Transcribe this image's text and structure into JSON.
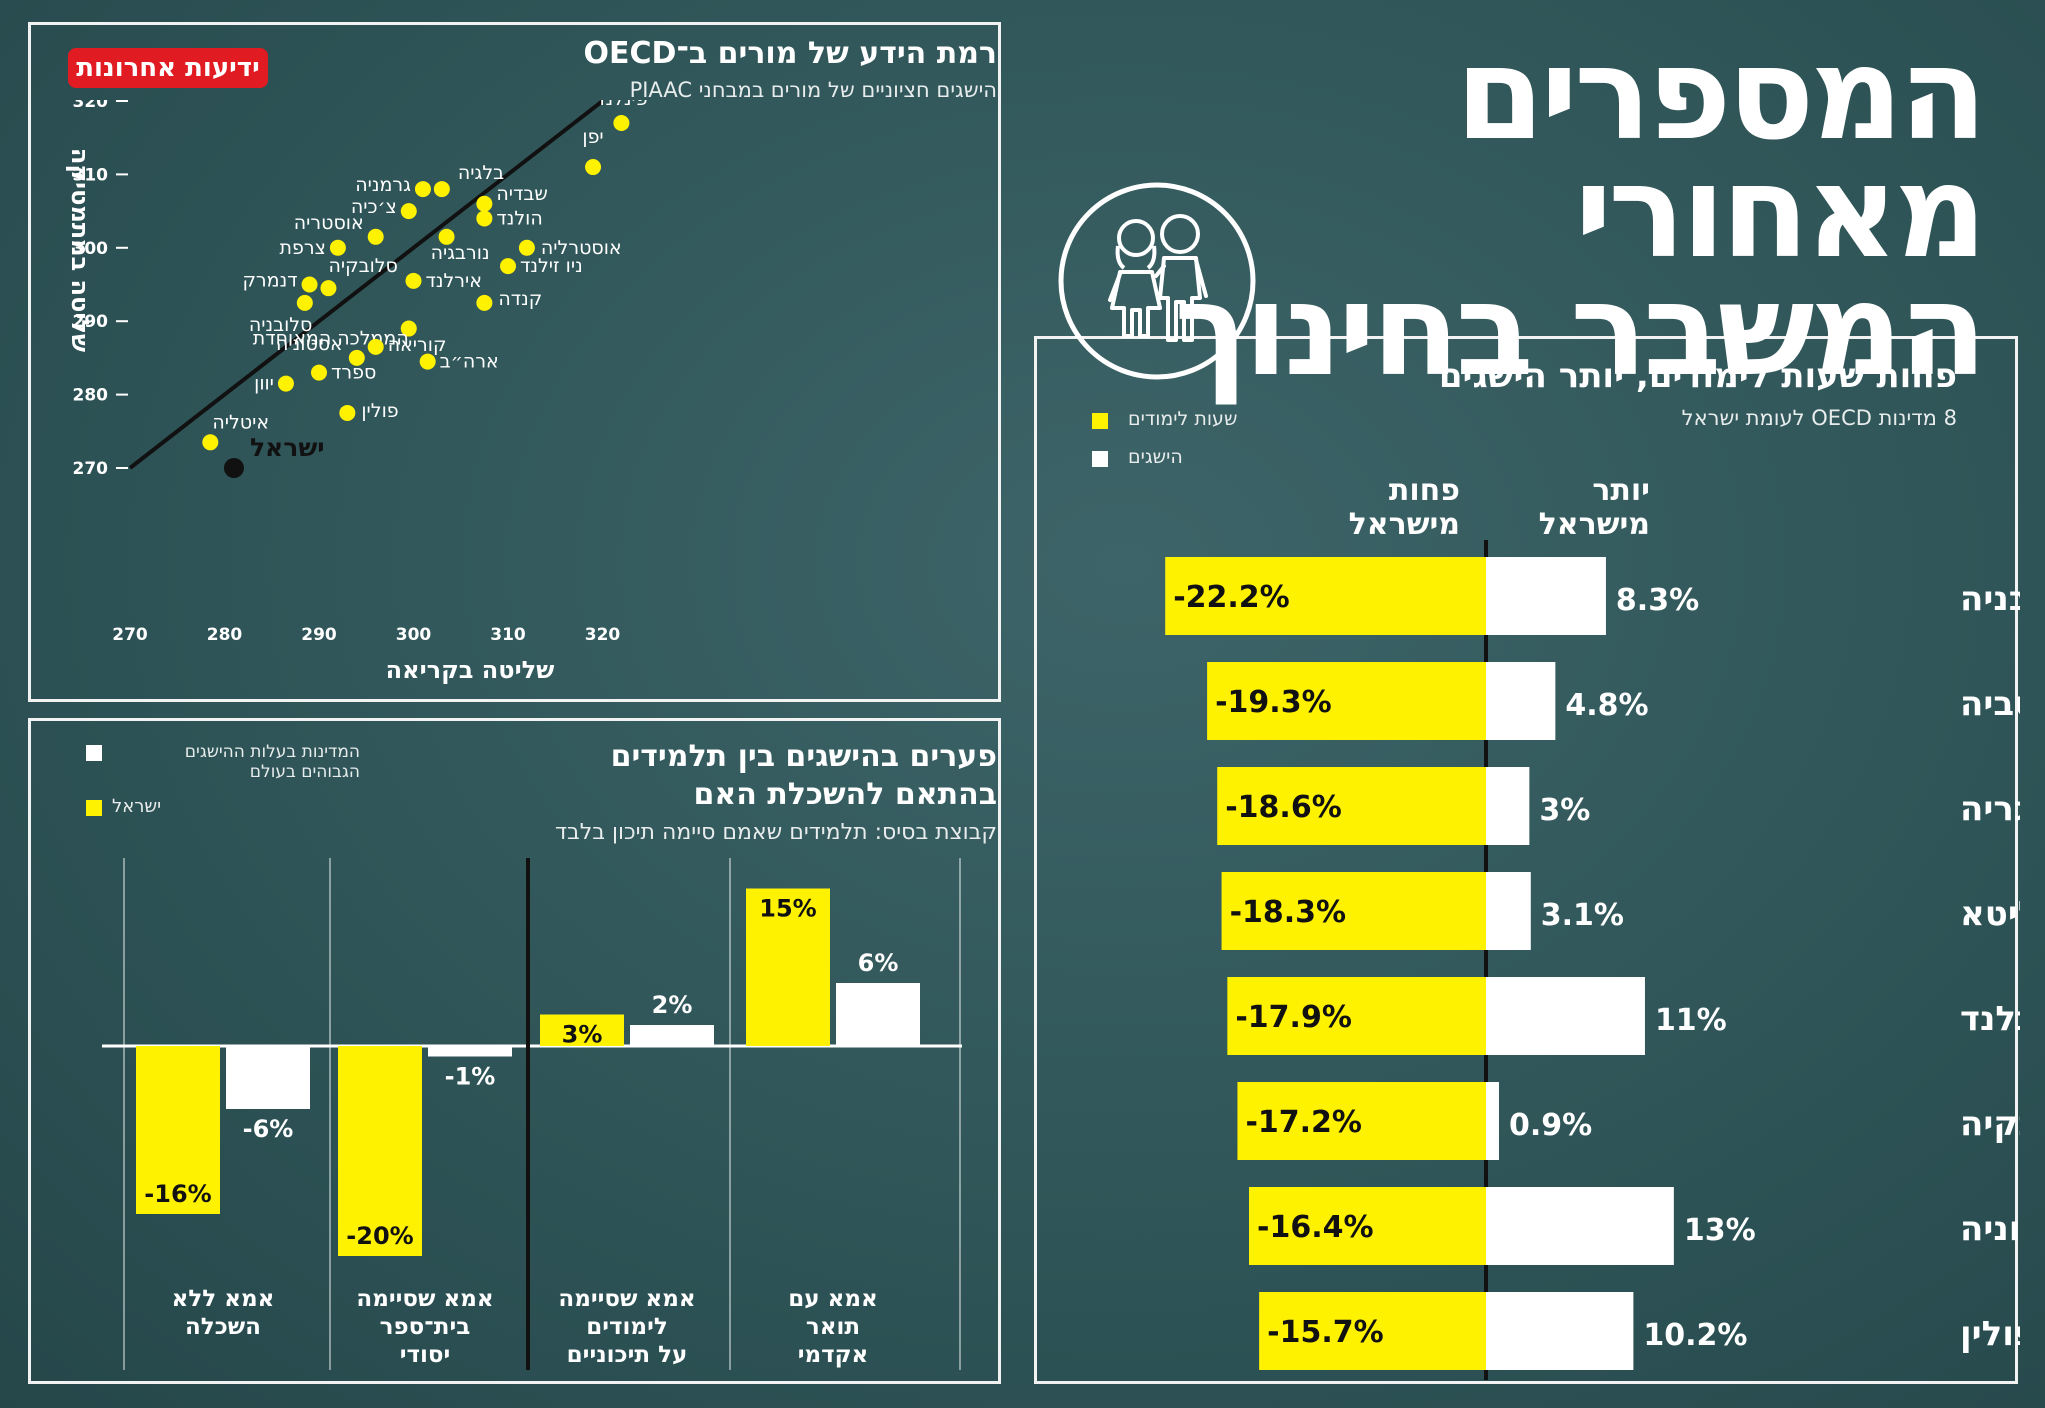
{
  "main_title": {
    "line1": "המספרים מאחורי",
    "line2": "המשבר בחינוך"
  },
  "brand": "ידיעות אחרונות",
  "colors": {
    "yellow": "#fff200",
    "white": "#ffffff",
    "board": "#2f5558"
  },
  "icons": [
    "children-icon"
  ],
  "scatter": {
    "title": "רמת הידע של מורים ב־OECD",
    "subtitle": "הישגים חציוניים של מורים במבחני PIAAC",
    "xlabel": "שליטה בקריאה",
    "ylabel": "שליטה במתמטיקה",
    "highlight_label": "ישראל"
  },
  "gap": {
    "title_line1": "פערים בהישגים בין תלמידים",
    "title_line2": "בהתאם להשכלת האם",
    "subtitle": "קבוצת בסיס: תלמידים שאמם סיימה תיכון בלבד",
    "legend_top_line1": "המדינות בעלות ההישגים",
    "legend_top_line2": "הגבוהים בעולם",
    "legend_israel": "ישראל"
  },
  "hours": {
    "title": "פחות שעות לימודים, יותר הישגים",
    "subtitle": "8 מדינות OECD לעומת ישראל",
    "legend_hours": "שעות לימודים",
    "legend_achievements": "הישגים",
    "col_more_line1": "יותר",
    "col_more_line2": "מישראל",
    "col_less_line1": "פחות",
    "col_less_line2": "מישראל"
  },
  "chart_data": [
    {
      "type": "scatter",
      "title": "רמת הידע של מורים ב־OECD",
      "subtitle": "הישגים חציוניים של מורים במבחני PIAAC",
      "xlabel": "שליטה בקריאה",
      "ylabel": "שליטה במתמטיקה",
      "xlim": [
        270,
        325
      ],
      "ylim": [
        270,
        320
      ],
      "xticks": [
        270,
        280,
        290,
        300,
        310,
        320
      ],
      "yticks": [
        270,
        280,
        290,
        300,
        310,
        320
      ],
      "trendline": [
        [
          270,
          270
        ],
        [
          320,
          320
        ]
      ],
      "points": [
        {
          "name": "פינלנד",
          "x": 322,
          "y": 317
        },
        {
          "name": "יפן",
          "x": 319,
          "y": 311
        },
        {
          "name": "בלגיה",
          "x": 303,
          "y": 308
        },
        {
          "name": "גרמניה",
          "x": 301,
          "y": 308
        },
        {
          "name": "שבדיה",
          "x": 307.5,
          "y": 306
        },
        {
          "name": "צ׳כיה",
          "x": 299.5,
          "y": 305
        },
        {
          "name": "הולנד",
          "x": 307.5,
          "y": 304
        },
        {
          "name": "אוסטריה",
          "x": 296,
          "y": 301.5
        },
        {
          "name": "נורבגיה",
          "x": 303.5,
          "y": 301.5
        },
        {
          "name": "צרפת",
          "x": 292,
          "y": 300
        },
        {
          "name": "אוסטרליה",
          "x": 312,
          "y": 300
        },
        {
          "name": "ניו זילנד",
          "x": 310,
          "y": 297.5
        },
        {
          "name": "אירלנד",
          "x": 300,
          "y": 295.5
        },
        {
          "name": "דנמרק",
          "x": 289,
          "y": 295
        },
        {
          "name": "סלובקיה",
          "x": 291,
          "y": 294.5
        },
        {
          "name": "סלובניה",
          "x": 288.5,
          "y": 292.5
        },
        {
          "name": "קנדה",
          "x": 307.5,
          "y": 292.5
        },
        {
          "name": "הממלכה המאוחדת",
          "x": 299.5,
          "y": 289
        },
        {
          "name": "קוריאה",
          "x": 296,
          "y": 286.5
        },
        {
          "name": "אסטוניה",
          "x": 294,
          "y": 285
        },
        {
          "name": "ארה״ב",
          "x": 301.5,
          "y": 284.5
        },
        {
          "name": "ספרד",
          "x": 290,
          "y": 283
        },
        {
          "name": "יוון",
          "x": 286.5,
          "y": 281.5
        },
        {
          "name": "פולין",
          "x": 293,
          "y": 277.5
        },
        {
          "name": "איטליה",
          "x": 278.5,
          "y": 273.5
        },
        {
          "name": "ישראל",
          "x": 281,
          "y": 270,
          "highlight": true
        }
      ]
    },
    {
      "type": "bar",
      "title": "פערים בהישגים בין תלמידים בהתאם להשכלת האם",
      "subtitle": "קבוצת בסיס: תלמידים שאמם סיימה תיכון בלבד",
      "categories": [
        "אמא ללא השכלה",
        "אמא שסיימה בית־ספר יסודי",
        "אמא שסיימה לימודים על תיכוניים",
        "אמא עם תואר אקדמי"
      ],
      "category_lines": [
        [
          "אמא ללא",
          "השכלה"
        ],
        [
          "אמא שסיימה",
          "בית־ספר",
          "יסודי"
        ],
        [
          "אמא שסיימה",
          "לימודים",
          "על תיכוניים"
        ],
        [
          "אמא עם",
          "תואר",
          "אקדמי"
        ]
      ],
      "series": [
        {
          "name": "ישראל",
          "color": "#fff200",
          "values": [
            -16,
            -20,
            3,
            15
          ],
          "labels": [
            "-16%",
            "-20%",
            "3%",
            "15%"
          ]
        },
        {
          "name": "המדינות בעלות ההישגים הגבוהים בעולם",
          "color": "#ffffff",
          "values": [
            -6,
            -1,
            2,
            6
          ],
          "labels": [
            "-6%",
            "-1%",
            "2%",
            "6%"
          ]
        }
      ]
    },
    {
      "type": "bar",
      "orientation": "horizontal-diverging",
      "title": "פחות שעות לימודים, יותר הישגים",
      "subtitle": "8 מדינות OECD לעומת ישראל",
      "categories": [
        "סלובניה",
        "לטביה",
        "הונגריה",
        "ליטא",
        "פינלנד",
        "סלובקיה",
        "אסטוניה",
        "פולין"
      ],
      "series": [
        {
          "name": "שעות לימודים",
          "color": "#fff200",
          "values": [
            -22.2,
            -19.3,
            -18.6,
            -18.3,
            -17.9,
            -17.2,
            -16.4,
            -15.7
          ],
          "labels": [
            "-22.2%",
            "-19.3%",
            "-18.6%",
            "-18.3%",
            "-17.9%",
            "-17.2%",
            "-16.4%",
            "-15.7%"
          ]
        },
        {
          "name": "הישגים",
          "color": "#ffffff",
          "values": [
            8.3,
            4.8,
            3,
            3.1,
            11,
            0.9,
            13,
            10.2
          ],
          "labels": [
            "8.3%",
            "4.8%",
            "3%",
            "3.1%",
            "11%",
            "0.9%",
            "13%",
            "10.2%"
          ]
        }
      ]
    }
  ]
}
